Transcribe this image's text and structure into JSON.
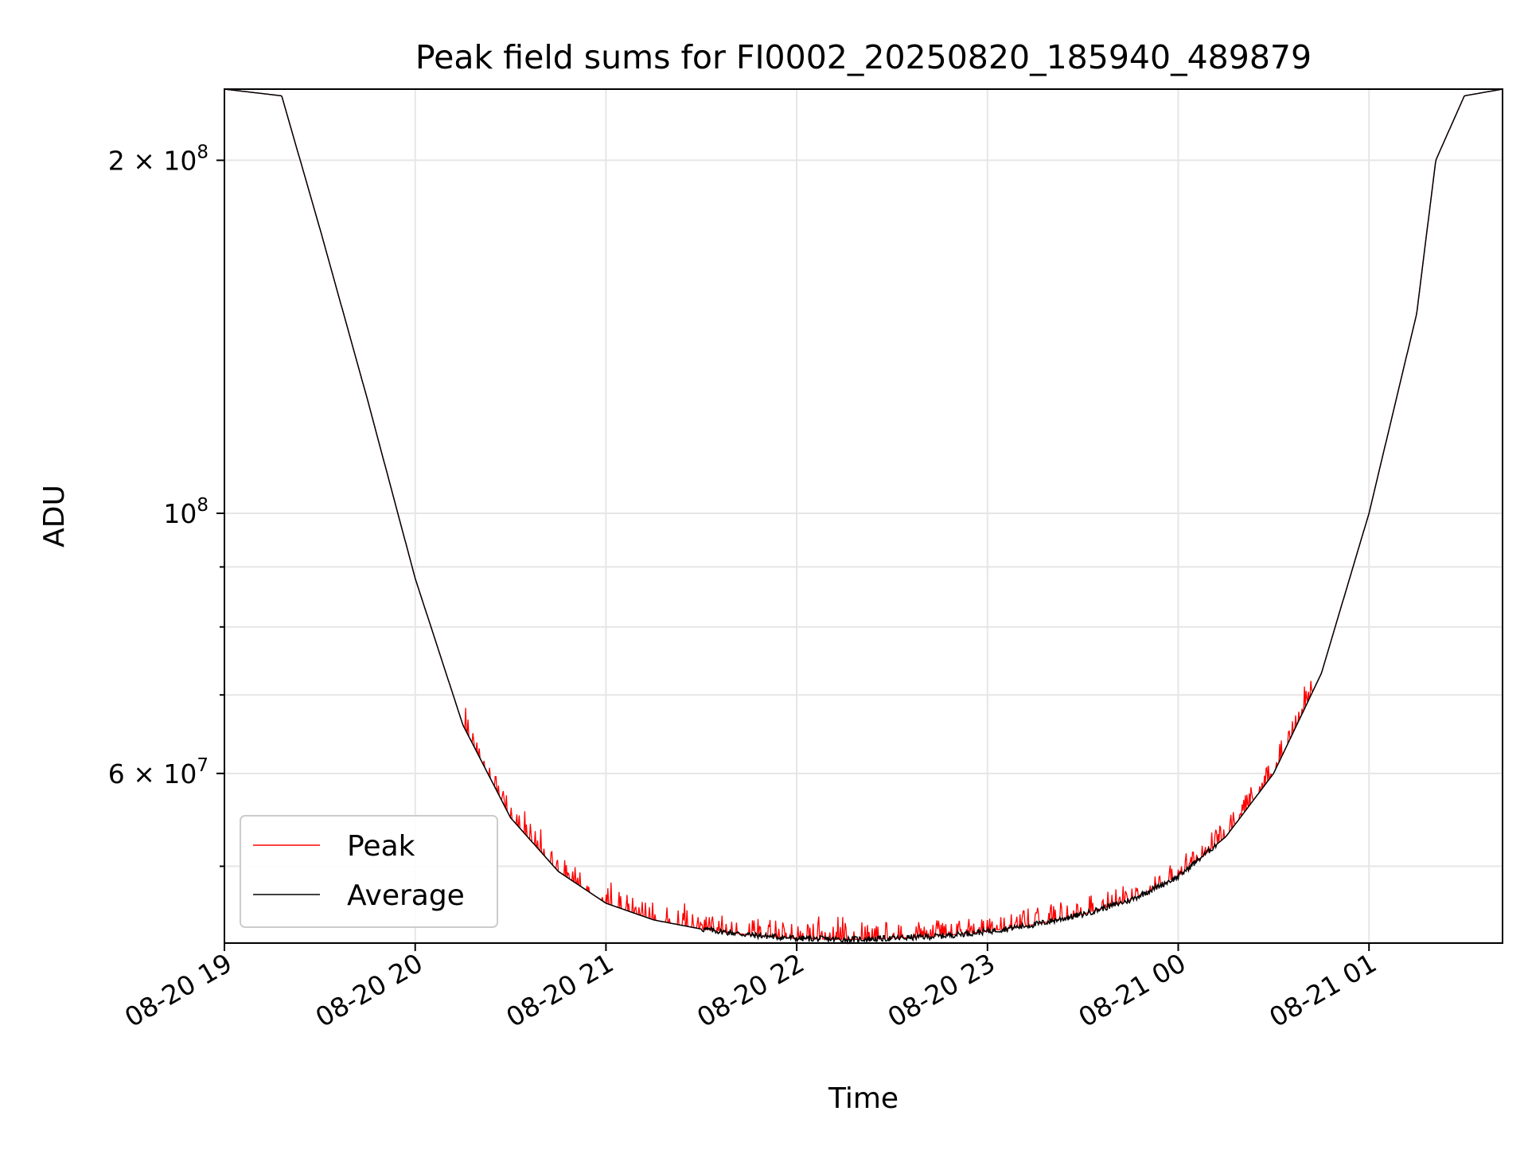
{
  "chart_data": {
    "type": "line",
    "title": "Peak field sums for FI0002_20250820_185940_489879",
    "xlabel": "Time",
    "ylabel": "ADU",
    "y_scale": "log",
    "grid": true,
    "legend_position": "lower-left",
    "x_range_hours_of_day": [
      19.0,
      25.7
    ],
    "ylim": [
      43000000,
      230000000
    ],
    "x_tick_labels": [
      "08-20 19",
      "08-20 20",
      "08-20 21",
      "08-20 22",
      "08-20 23",
      "08-21 00",
      "08-21 01"
    ],
    "x_tick_hours": [
      19,
      20,
      21,
      22,
      23,
      24,
      25
    ],
    "y_major_ticks": [
      {
        "value": 100000000,
        "label_base": "10",
        "label_exp": "8"
      },
      {
        "value": 200000000,
        "label_base": "2 × 10",
        "label_exp": "8"
      },
      {
        "value": 60000000,
        "label_base": "6 × 10",
        "label_exp": "7"
      }
    ],
    "y_minor_ticks": [
      50000000,
      70000000,
      80000000,
      90000000
    ],
    "series": [
      {
        "name": "Peak",
        "color": "#ff0000",
        "note_noise": "upward spikes above Average between ~20:15 and ~00:40",
        "x_hours": [
          19.0,
          19.3,
          19.5,
          19.75,
          20.0,
          20.25,
          20.5,
          20.75,
          21.0,
          21.25,
          21.5,
          21.75,
          22.0,
          22.25,
          22.5,
          22.75,
          23.0,
          23.25,
          23.5,
          23.75,
          24.0,
          24.25,
          24.5,
          24.75,
          25.0,
          25.25,
          25.35,
          25.5,
          25.7
        ],
        "y_values": [
          230000000,
          227000000,
          175000000,
          125000000,
          88000000,
          66000000,
          55000000,
          49500000,
          46500000,
          45000000,
          44200000,
          43700000,
          43400000,
          43300000,
          43400000,
          43600000,
          44000000,
          44600000,
          45500000,
          46800000,
          49000000,
          53000000,
          60000000,
          73000000,
          100000000,
          148000000,
          200000000,
          227000000,
          230000000
        ]
      },
      {
        "name": "Average",
        "color": "#000000",
        "x_hours": [
          19.0,
          19.3,
          19.5,
          19.75,
          20.0,
          20.25,
          20.5,
          20.75,
          21.0,
          21.25,
          21.5,
          21.75,
          22.0,
          22.25,
          22.5,
          22.75,
          23.0,
          23.25,
          23.5,
          23.75,
          24.0,
          24.25,
          24.5,
          24.75,
          25.0,
          25.25,
          25.35,
          25.5,
          25.7
        ],
        "y_values": [
          230000000,
          227000000,
          175000000,
          125000000,
          88000000,
          66000000,
          55000000,
          49500000,
          46500000,
          45000000,
          44200000,
          43700000,
          43400000,
          43300000,
          43400000,
          43600000,
          44000000,
          44600000,
          45500000,
          46800000,
          49000000,
          53000000,
          60000000,
          73000000,
          100000000,
          148000000,
          200000000,
          227000000,
          230000000
        ]
      }
    ]
  }
}
